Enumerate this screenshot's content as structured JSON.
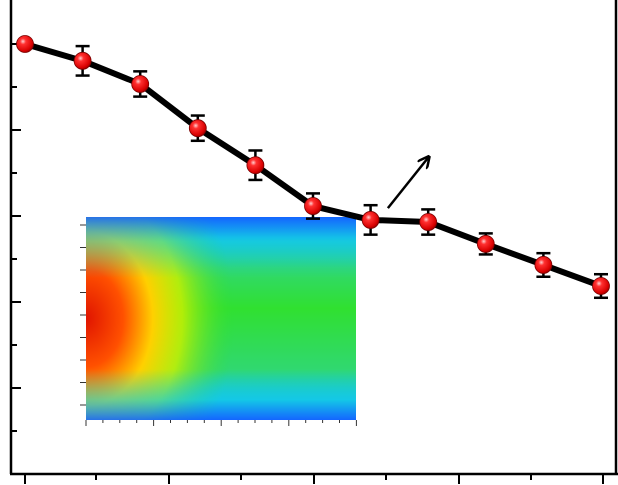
{
  "chart_data": {
    "type": "line",
    "title": "",
    "xlabel": "",
    "ylabel": "",
    "x": [
      1,
      2,
      3,
      4,
      5,
      6,
      7,
      8,
      9,
      10,
      11
    ],
    "xlim": [
      1,
      11.3
    ],
    "ylim": [
      -1.0,
      0.1
    ],
    "grid": false,
    "series": [
      {
        "name": "",
        "values": [
          0.0,
          -0.04,
          -0.095,
          -0.2,
          -0.288,
          -0.385,
          -0.418,
          -0.423,
          -0.475,
          -0.525,
          -0.575
        ],
        "errors": [
          0.008,
          0.035,
          0.03,
          0.03,
          0.035,
          0.03,
          0.035,
          0.03,
          0.025,
          0.028,
          0.028
        ],
        "line_color": "#000000",
        "marker_color": "#e00000"
      }
    ],
    "arrow": {
      "from": [
        7.3,
        -0.39
      ],
      "to": [
        8.0,
        -0.27
      ]
    },
    "inset": {
      "type": "heatmap",
      "colormap": [
        "#1466ff",
        "#14c8e6",
        "#20d040",
        "#c8f000",
        "#ffd000",
        "#ff5000",
        "#e01400"
      ]
    },
    "colors": {
      "axis": "#000000",
      "line": "#000000",
      "marker": "#e00000"
    }
  }
}
